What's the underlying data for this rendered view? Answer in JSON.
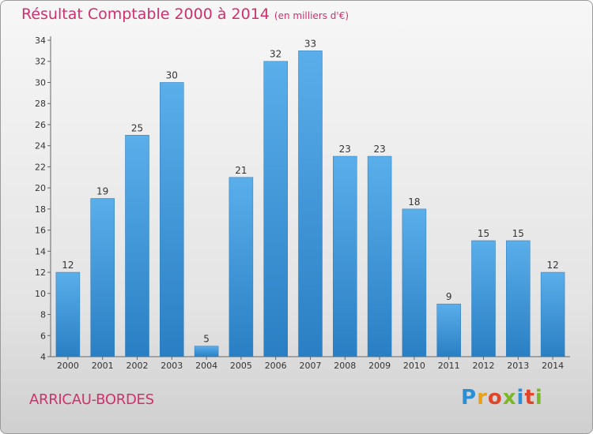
{
  "header": {
    "title": "Résultat Comptable 2000 à 2014",
    "subtitle": "(en milliers d'€)"
  },
  "footer": {
    "commune": "ARRICAU-BORDES",
    "logo_text": "Proxiti"
  },
  "colors": {
    "accent": "#d0306b",
    "bar_top": "#5aaeea",
    "bar_bottom": "#2a7fc4"
  },
  "chart_data": {
    "type": "bar",
    "title": "Résultat Comptable 2000 à 2014",
    "subtitle": "(en milliers d'€)",
    "xlabel": "",
    "ylabel": "",
    "categories": [
      "2000",
      "2001",
      "2002",
      "2003",
      "2004",
      "2005",
      "2006",
      "2007",
      "2008",
      "2009",
      "2010",
      "2011",
      "2012",
      "2013",
      "2014"
    ],
    "values": [
      12,
      19,
      25,
      30,
      5,
      21,
      32,
      33,
      23,
      23,
      18,
      9,
      15,
      15,
      12
    ],
    "ylim": [
      4,
      34
    ],
    "yticks": [
      4,
      6,
      8,
      10,
      12,
      14,
      16,
      18,
      20,
      22,
      24,
      26,
      28,
      30,
      32,
      34
    ],
    "grid": false,
    "legend": "none"
  }
}
